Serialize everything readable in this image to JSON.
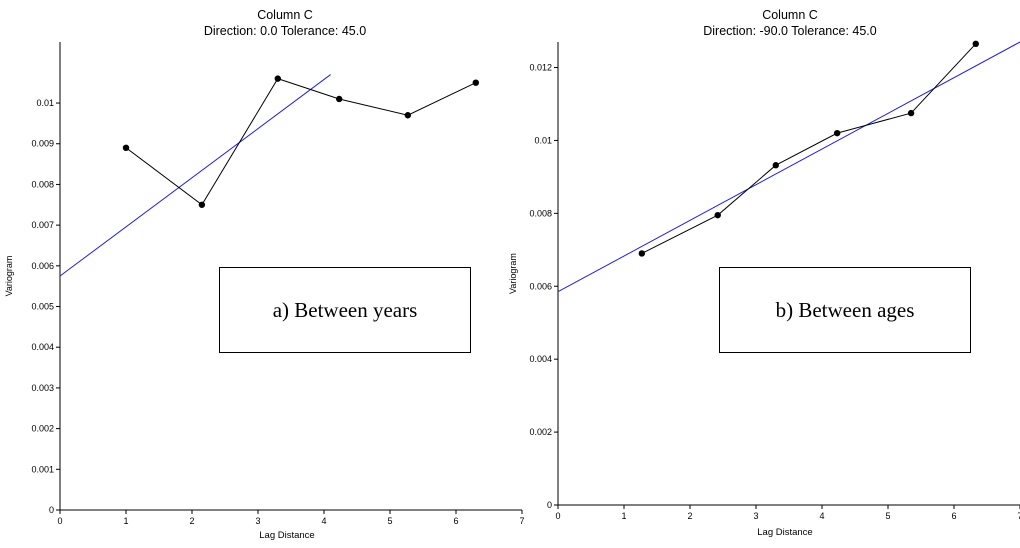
{
  "chart_data": [
    {
      "type": "line",
      "title": "Column C",
      "subtitle": "Direction: 0.0   Tolerance: 45.0",
      "xlabel": "Lag Distance",
      "ylabel": "Variogram",
      "xlim": [
        0,
        7
      ],
      "ylim": [
        0,
        0.0115
      ],
      "xticks": [
        "0",
        "1",
        "2",
        "3",
        "4",
        "5",
        "6",
        "7"
      ],
      "yticks": [
        "0",
        "0.001",
        "0.002",
        "0.003",
        "0.004",
        "0.005",
        "0.006",
        "0.007",
        "0.008",
        "0.009",
        "0.01"
      ],
      "grid": false,
      "legend": "none",
      "series": [
        {
          "x": [
            1.0,
            2.15,
            3.3,
            4.23,
            5.27,
            6.3
          ],
          "y": [
            0.0089,
            0.0075,
            0.0106,
            0.0101,
            0.0097,
            0.0105
          ]
        }
      ],
      "fit_line": {
        "x": [
          0,
          4.1
        ],
        "y": [
          0.00575,
          0.0107
        ]
      },
      "annotation": "a) Between years"
    },
    {
      "type": "line",
      "title": "Column C",
      "subtitle": "Direction: -90.0   Tolerance: 45.0",
      "xlabel": "Lag Distance",
      "ylabel": "Variogram",
      "xlim": [
        0,
        7
      ],
      "ylim": [
        0,
        0.0127
      ],
      "xticks": [
        "0",
        "1",
        "2",
        "3",
        "4",
        "5",
        "6",
        "7"
      ],
      "yticks": [
        "0",
        "0.002",
        "0.004",
        "0.006",
        "0.008",
        "0.01",
        "0.012"
      ],
      "grid": false,
      "legend": "none",
      "series": [
        {
          "x": [
            1.27,
            2.42,
            3.3,
            4.23,
            5.35,
            6.33
          ],
          "y": [
            0.0069,
            0.00795,
            0.00932,
            0.0102,
            0.01075,
            0.01265
          ]
        }
      ],
      "fit_line": {
        "x": [
          0,
          7
        ],
        "y": [
          0.00585,
          0.0127
        ]
      },
      "annotation": "b) Between ages"
    }
  ],
  "colors": {
    "series": "#000000",
    "fit": "#2020e0",
    "axis": "#000000"
  }
}
